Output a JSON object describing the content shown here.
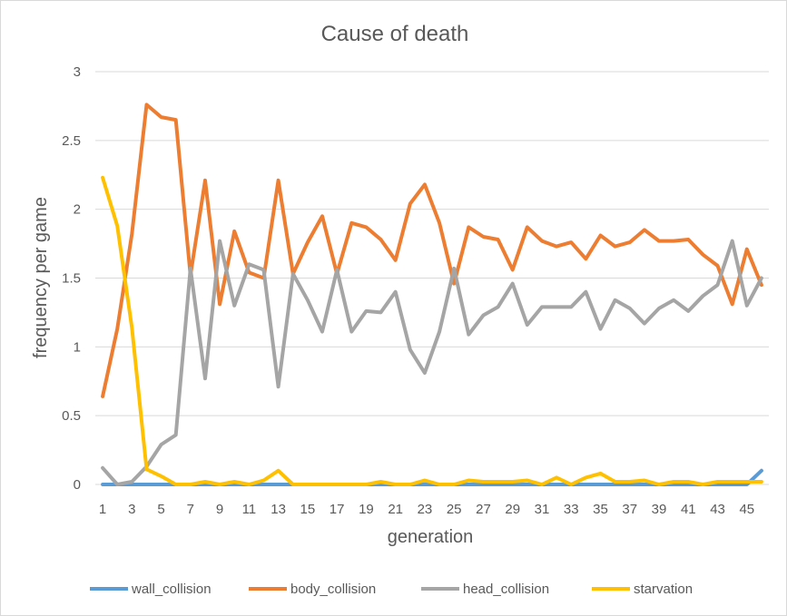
{
  "chart_data": {
    "type": "line",
    "title": "Cause of death",
    "xlabel": "generation",
    "ylabel": "frequency per game",
    "ylim": [
      0,
      3
    ],
    "y_ticks": [
      "0",
      "0.5",
      "1",
      "1.5",
      "2",
      "2.5",
      "3"
    ],
    "x": [
      1,
      2,
      3,
      4,
      5,
      6,
      7,
      8,
      9,
      10,
      11,
      12,
      13,
      14,
      15,
      16,
      17,
      18,
      19,
      20,
      21,
      22,
      23,
      24,
      25,
      26,
      27,
      28,
      29,
      30,
      31,
      32,
      33,
      34,
      35,
      36,
      37,
      38,
      39,
      40,
      41,
      42,
      43,
      44,
      45,
      46
    ],
    "x_tick_labels": [
      "1",
      "3",
      "5",
      "7",
      "9",
      "11",
      "13",
      "15",
      "17",
      "19",
      "21",
      "23",
      "25",
      "27",
      "29",
      "31",
      "33",
      "35",
      "37",
      "39",
      "41",
      "43",
      "45"
    ],
    "grid": "horizontal",
    "legend_position": "bottom",
    "series": [
      {
        "name": "wall_collision",
        "color": "#5b9bd5",
        "values": [
          0,
          0,
          0,
          0,
          0,
          0,
          0,
          0,
          0,
          0,
          0,
          0,
          0,
          0,
          0,
          0,
          0,
          0,
          0,
          0,
          0,
          0,
          0,
          0,
          0,
          0,
          0,
          0,
          0,
          0,
          0,
          0,
          0,
          0,
          0,
          0,
          0,
          0,
          0,
          0,
          0,
          0,
          0,
          0,
          0,
          0.1
        ]
      },
      {
        "name": "body_collision",
        "color": "#ed7d31",
        "values": [
          0.64,
          1.13,
          1.82,
          2.76,
          2.67,
          2.65,
          1.52,
          2.21,
          1.31,
          1.84,
          1.54,
          1.5,
          2.21,
          1.53,
          1.76,
          1.95,
          1.53,
          1.9,
          1.87,
          1.78,
          1.63,
          2.04,
          2.18,
          1.9,
          1.46,
          1.87,
          1.8,
          1.78,
          1.56,
          1.87,
          1.77,
          1.73,
          1.76,
          1.64,
          1.81,
          1.73,
          1.76,
          1.85,
          1.77,
          1.77,
          1.78,
          1.67,
          1.59,
          1.31,
          1.71,
          1.45
        ]
      },
      {
        "name": "head_collision",
        "color": "#a5a5a5",
        "values": [
          0.12,
          0,
          0.02,
          0.13,
          0.29,
          0.36,
          1.57,
          0.77,
          1.77,
          1.3,
          1.6,
          1.56,
          0.71,
          1.53,
          1.34,
          1.11,
          1.56,
          1.11,
          1.26,
          1.25,
          1.4,
          0.98,
          0.81,
          1.11,
          1.57,
          1.09,
          1.23,
          1.29,
          1.46,
          1.16,
          1.29,
          1.29,
          1.29,
          1.4,
          1.13,
          1.34,
          1.28,
          1.17,
          1.28,
          1.34,
          1.26,
          1.37,
          1.45,
          1.77,
          1.3,
          1.5
        ]
      },
      {
        "name": "starvation",
        "color": "#ffc000",
        "values": [
          2.23,
          1.88,
          1.14,
          0.11,
          0.06,
          0,
          0,
          0.02,
          0,
          0.02,
          0,
          0.03,
          0.1,
          0,
          0,
          0,
          0,
          0,
          0,
          0.02,
          0,
          0,
          0.03,
          0,
          0,
          0.03,
          0.02,
          0.02,
          0.02,
          0.03,
          0,
          0.05,
          0,
          0.05,
          0.08,
          0.02,
          0.02,
          0.03,
          0,
          0.02,
          0.02,
          0,
          0.02,
          0.02,
          0.02,
          0.02
        ]
      }
    ]
  }
}
